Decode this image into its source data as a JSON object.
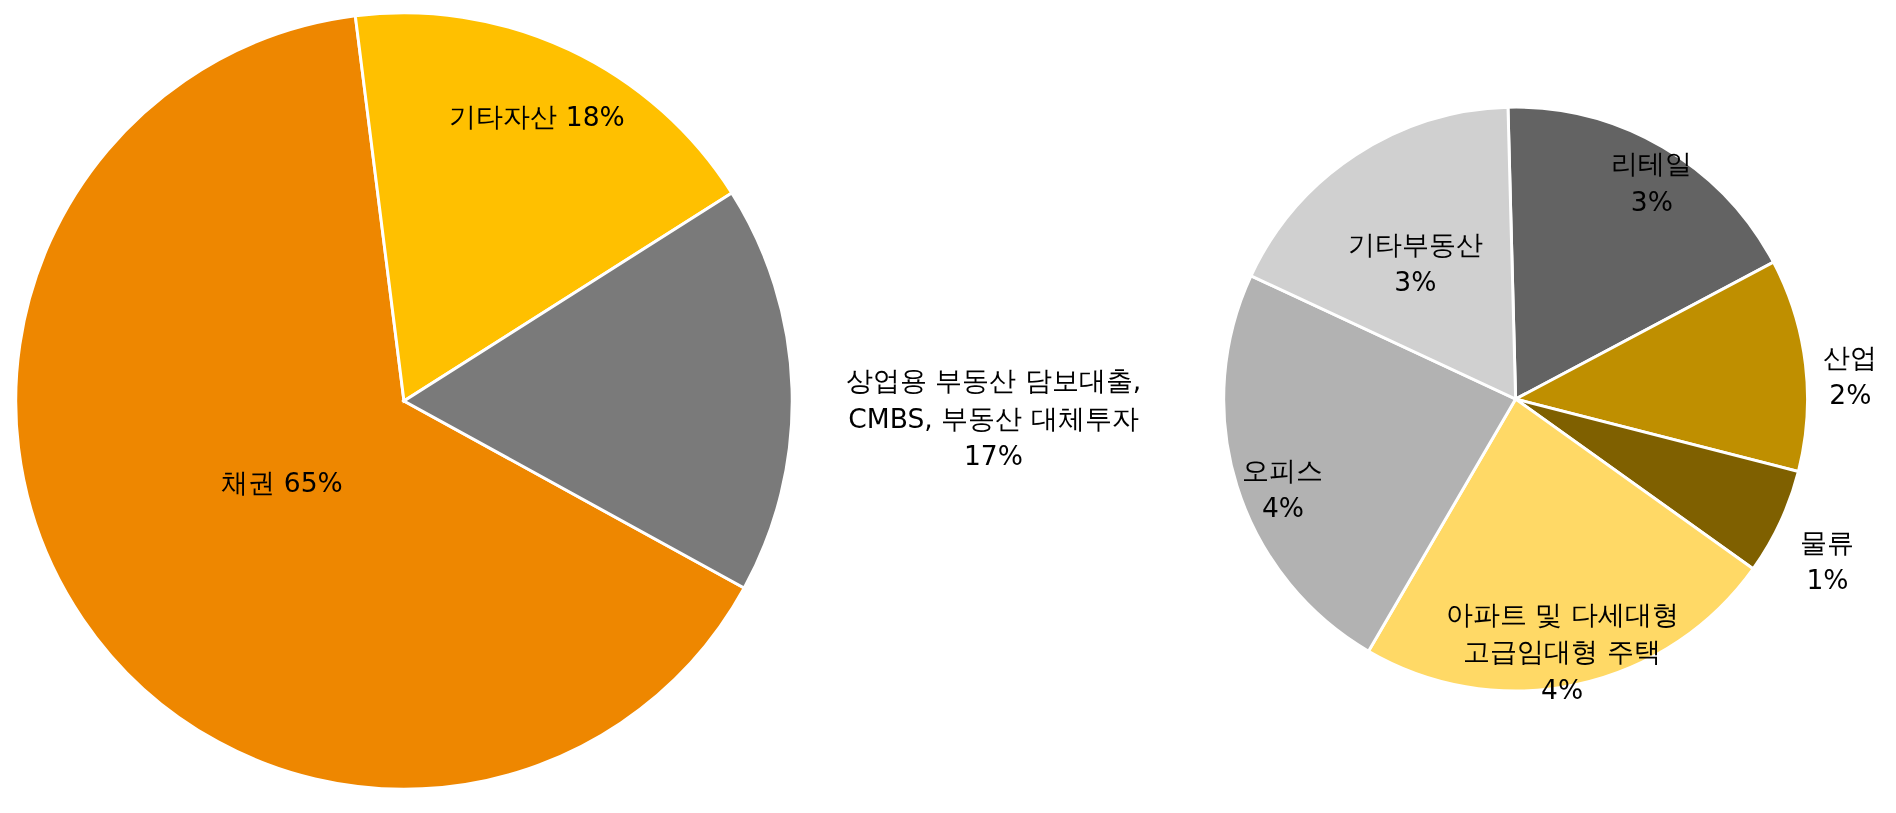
{
  "chart_data": [
    {
      "type": "pie",
      "categories": [
        "채권",
        "기타자산",
        "상업용 부동산 담보대출, CMBS, 부동산 대체투자"
      ],
      "values": [
        65,
        18,
        17
      ],
      "value_labels": [
        "65%",
        "18%",
        "17%"
      ],
      "colors": [
        "#ee8700",
        "#ffc000",
        "#7a7a7a"
      ],
      "legend": false
    },
    {
      "type": "pie",
      "categories": [
        "리테일",
        "산업",
        "물류",
        "아파트 및 다세대형 고급임대형 주택",
        "오피스",
        "기타부동산"
      ],
      "values": [
        3,
        2,
        1,
        4,
        4,
        3
      ],
      "value_labels": [
        "3%",
        "2%",
        "1%",
        "4%",
        "4%",
        "3%"
      ],
      "colors": [
        "#636363",
        "#bf8f00",
        "#7f6000",
        "#ffd966",
        "#b2b2b2",
        "#d0d0d0"
      ],
      "legend": false
    }
  ]
}
